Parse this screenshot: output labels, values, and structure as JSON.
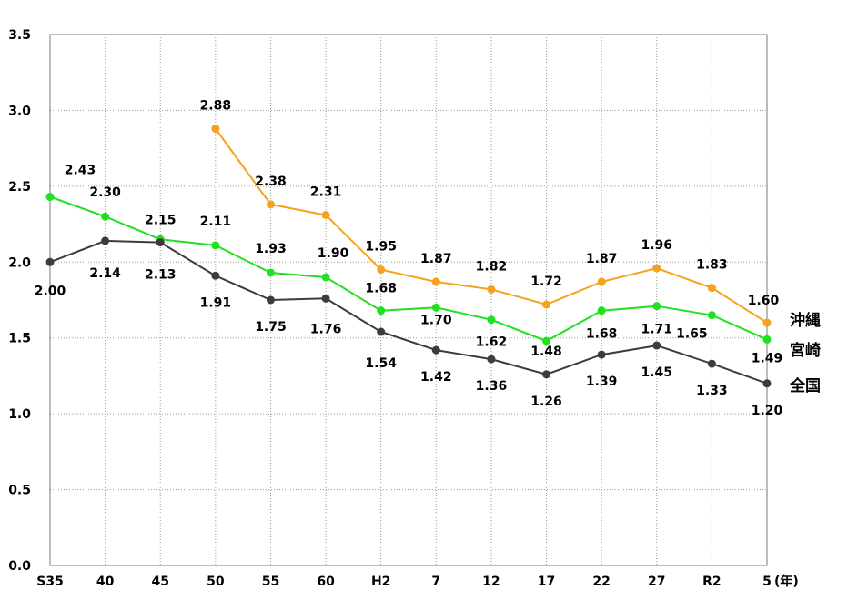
{
  "chart_data": {
    "type": "line",
    "categories": [
      "S35",
      "40",
      "45",
      "50",
      "55",
      "60",
      "H2",
      "7",
      "12",
      "17",
      "22",
      "27",
      "R2",
      "5"
    ],
    "x_unit_label": "(年)",
    "ylim": [
      0,
      3.5
    ],
    "yticks": [
      "0.0",
      "0.5",
      "1.0",
      "1.5",
      "2.0",
      "2.5",
      "3.0",
      "3.5"
    ],
    "grid": "dotted",
    "legend": "end-of-line labels, right",
    "series": [
      {
        "name": "沖縄",
        "color": "#F5A21E",
        "values": [
          null,
          null,
          null,
          2.88,
          2.38,
          2.31,
          1.95,
          1.87,
          1.82,
          1.72,
          1.87,
          1.96,
          1.83,
          1.6
        ],
        "labels": [
          null,
          null,
          null,
          "2.88",
          "2.38",
          "2.31",
          "1.95",
          "1.87",
          "1.82",
          "1.72",
          "1.87",
          "1.96",
          "1.83",
          "1.60"
        ]
      },
      {
        "name": "宮崎",
        "color": "#1FE11F",
        "values": [
          2.43,
          2.3,
          2.15,
          2.11,
          1.93,
          1.9,
          1.68,
          1.7,
          1.62,
          1.48,
          1.68,
          1.71,
          1.65,
          1.49
        ],
        "labels": [
          "2.43",
          "2.30",
          "2.15",
          "2.11",
          "1.93",
          "1.90",
          "1.68",
          "1.70",
          "1.62",
          "1.48",
          "1.68",
          "1.71",
          "1.65",
          "1.49"
        ]
      },
      {
        "name": "全国",
        "color": "#3C3C3C",
        "values": [
          2.0,
          2.14,
          2.13,
          1.91,
          1.75,
          1.76,
          1.54,
          1.42,
          1.36,
          1.26,
          1.39,
          1.45,
          1.33,
          1.2
        ],
        "labels": [
          "2.00",
          "2.14",
          "2.13",
          "1.91",
          "1.75",
          "1.76",
          "1.54",
          "1.42",
          "1.36",
          "1.26",
          "1.39",
          "1.45",
          "1.33",
          "1.20"
        ]
      }
    ]
  }
}
